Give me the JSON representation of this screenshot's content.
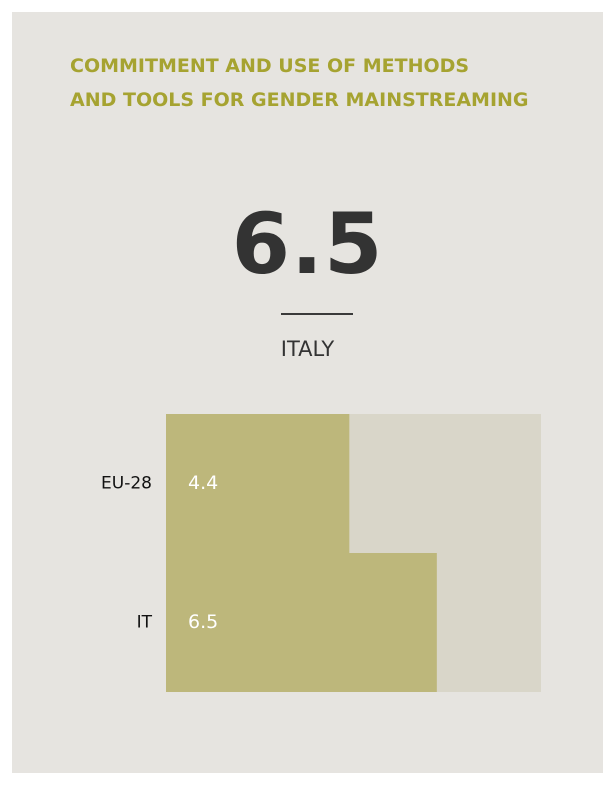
{
  "title_lines": [
    "COMMITMENT AND USE OF METHODS",
    "AND TOOLS FOR GENDER MAINSTREAMING"
  ],
  "headline_value": "6.5",
  "country": "ITALY",
  "colors": {
    "background": "#e6e4e0",
    "title": "#a6a331",
    "bar": "#bdb77b",
    "track": "#d9d6c9",
    "value_text": "#ffffff"
  },
  "chart_data": {
    "type": "bar",
    "orientation": "horizontal",
    "categories": [
      "EU-28",
      "IT"
    ],
    "values": [
      4.4,
      6.5
    ],
    "value_labels": [
      "4.4",
      "6.5"
    ],
    "xlim": [
      0,
      9
    ],
    "title": "",
    "xlabel": "",
    "ylabel": ""
  }
}
